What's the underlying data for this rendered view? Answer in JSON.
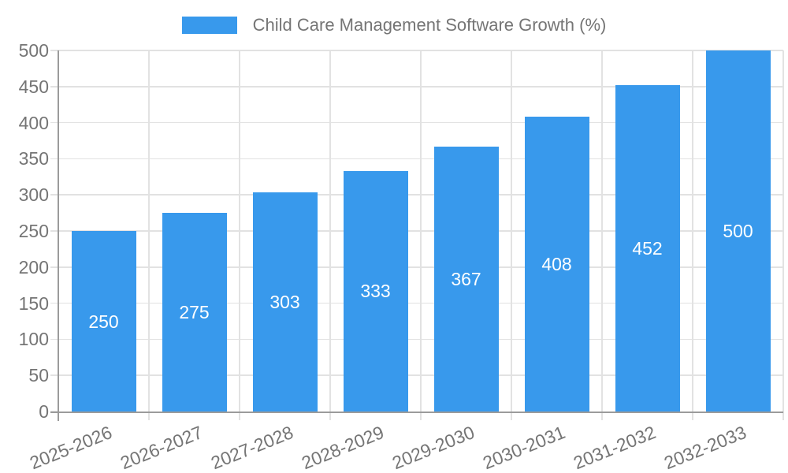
{
  "legend": {
    "label": "Child Care Management Software Growth (%)"
  },
  "chart_data": {
    "type": "bar",
    "title": "Child Care Management Software Growth (%)",
    "categories": [
      "2025-2026",
      "2026-2027",
      "2027-2028",
      "2028-2029",
      "2029-2030",
      "2030-2031",
      "2031-2032",
      "2032-2033"
    ],
    "values": [
      250,
      275,
      303,
      333,
      367,
      408,
      452,
      500
    ],
    "xlabel": "",
    "ylabel": "",
    "ylim": [
      0,
      500
    ],
    "ytick_step": 50,
    "ytick_labels": [
      "0",
      "50",
      "100",
      "150",
      "200",
      "250",
      "300",
      "350",
      "400",
      "450",
      "500"
    ],
    "grid": true,
    "legend_position": "top",
    "colors": {
      "bar": "#3899ec",
      "grid": "#e2e2e2",
      "axis": "#9b9b9b",
      "tick_text": "#757575",
      "value_label_text": "#ffffff",
      "background": "#ffffff"
    }
  }
}
